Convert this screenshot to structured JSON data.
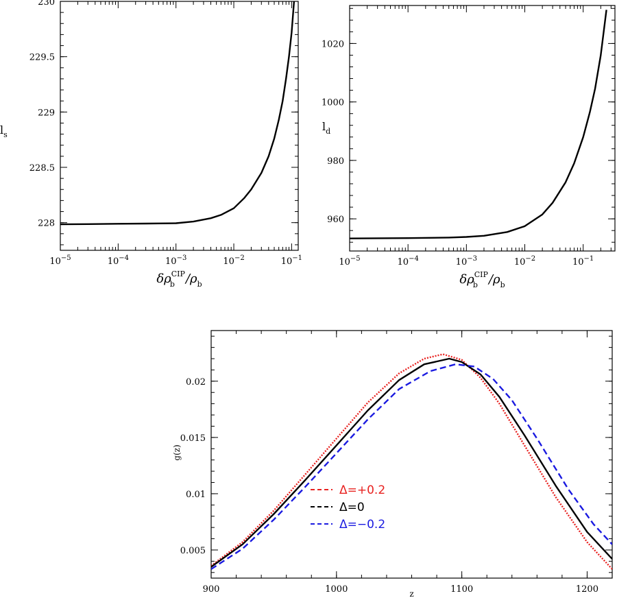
{
  "chart_data": [
    {
      "type": "line",
      "xscale": "log",
      "xlim": [
        1e-05,
        0.13
      ],
      "ylim": [
        227.75,
        230
      ],
      "xlabel": "δρ_b^CIP/ρ_b",
      "xlabel_main": "δρ",
      "xlabel_sup": "CIP",
      "xlabel_sub": "b",
      "xlabel_over": "/ρ",
      "xlabel_over_sub": "b",
      "ylabel": "l",
      "ylabel_sub": "s",
      "xticks": [
        {
          "value": 1e-05,
          "base": "10",
          "exp": "−5"
        },
        {
          "value": 0.0001,
          "base": "10",
          "exp": "−4"
        },
        {
          "value": 0.001,
          "base": "10",
          "exp": "−3"
        },
        {
          "value": 0.01,
          "base": "10",
          "exp": "−2"
        },
        {
          "value": 0.1,
          "base": "10",
          "exp": "−1"
        }
      ],
      "yticks": [
        {
          "value": 228,
          "label": "228"
        },
        {
          "value": 228.5,
          "label": "228.5"
        },
        {
          "value": 229,
          "label": "229"
        },
        {
          "value": 229.5,
          "label": "229.5"
        },
        {
          "value": 230,
          "label": "230"
        }
      ],
      "series": [
        {
          "color": "#000000",
          "dash": "solid",
          "x": [
            1e-05,
            3e-05,
            0.0001,
            0.0003,
            0.001,
            0.002,
            0.004,
            0.006,
            0.01,
            0.015,
            0.02,
            0.03,
            0.04,
            0.05,
            0.06,
            0.07,
            0.08,
            0.09,
            0.1,
            0.11
          ],
          "y": [
            227.985,
            227.987,
            227.99,
            227.992,
            227.995,
            228.01,
            228.04,
            228.07,
            228.13,
            228.22,
            228.3,
            228.45,
            228.6,
            228.76,
            228.93,
            229.1,
            229.3,
            229.5,
            229.72,
            230.0
          ]
        }
      ]
    },
    {
      "type": "line",
      "xscale": "log",
      "xlim": [
        1e-05,
        0.35
      ],
      "ylim": [
        949,
        1033
      ],
      "xlabel": "δρ_b^CIP/ρ_b",
      "xlabel_main": "δρ",
      "xlabel_sup": "CIP",
      "xlabel_sub": "b",
      "xlabel_over": "/ρ",
      "xlabel_over_sub": "b",
      "ylabel": "l",
      "ylabel_sub": "d",
      "xticks": [
        {
          "value": 1e-05,
          "base": "10",
          "exp": "−5"
        },
        {
          "value": 0.0001,
          "base": "10",
          "exp": "−4"
        },
        {
          "value": 0.001,
          "base": "10",
          "exp": "−3"
        },
        {
          "value": 0.01,
          "base": "10",
          "exp": "−2"
        },
        {
          "value": 0.1,
          "base": "10",
          "exp": "−1"
        }
      ],
      "yticks": [
        {
          "value": 960,
          "label": "960"
        },
        {
          "value": 980,
          "label": "980"
        },
        {
          "value": 1000,
          "label": "1000"
        },
        {
          "value": 1020,
          "label": "1020"
        }
      ],
      "series": [
        {
          "color": "#000000",
          "dash": "solid",
          "x": [
            1e-05,
            0.0001,
            0.0005,
            0.001,
            0.002,
            0.005,
            0.01,
            0.02,
            0.03,
            0.05,
            0.07,
            0.1,
            0.13,
            0.16,
            0.2,
            0.25
          ],
          "y": [
            953.3,
            953.4,
            953.6,
            953.8,
            954.2,
            955.5,
            957.5,
            961.5,
            965.5,
            972.5,
            979,
            988,
            996.5,
            1004.5,
            1016,
            1031.5
          ]
        }
      ]
    },
    {
      "type": "line",
      "xscale": "linear",
      "xlim": [
        900,
        1220
      ],
      "ylim": [
        0.0025,
        0.0245
      ],
      "xlabel": "z",
      "ylabel": "g(z)",
      "xticks": [
        {
          "value": 900,
          "label": "900"
        },
        {
          "value": 1000,
          "label": "1000"
        },
        {
          "value": 1100,
          "label": "1100"
        },
        {
          "value": 1200,
          "label": "1200"
        }
      ],
      "yticks": [
        {
          "value": 0.005,
          "label": "0.005"
        },
        {
          "value": 0.01,
          "label": "0.01"
        },
        {
          "value": 0.015,
          "label": "0.015"
        },
        {
          "value": 0.02,
          "label": "0.02"
        }
      ],
      "legend_position": "center-right",
      "series": [
        {
          "name": "Δ=+0.2",
          "color": "#e8211f",
          "dash": "dotted",
          "legend_dash": "dashed",
          "x": [
            900,
            925,
            950,
            975,
            1000,
            1025,
            1050,
            1070,
            1085,
            1100,
            1115,
            1130,
            1150,
            1175,
            1200,
            1220
          ],
          "y": [
            0.0036,
            0.0057,
            0.0085,
            0.0117,
            0.0149,
            0.0181,
            0.0207,
            0.022,
            0.0224,
            0.0219,
            0.0203,
            0.018,
            0.0143,
            0.0097,
            0.0057,
            0.0033
          ]
        },
        {
          "name": "Δ=0",
          "color": "#000000",
          "dash": "solid",
          "legend_dash": "dashed",
          "x": [
            900,
            925,
            950,
            975,
            1000,
            1025,
            1050,
            1070,
            1090,
            1100,
            1115,
            1130,
            1150,
            1175,
            1200,
            1220
          ],
          "y": [
            0.0035,
            0.0055,
            0.0082,
            0.0112,
            0.0143,
            0.0174,
            0.0201,
            0.0215,
            0.022,
            0.0217,
            0.0206,
            0.0186,
            0.0152,
            0.0107,
            0.0066,
            0.0042
          ]
        },
        {
          "name": "Δ=−0.2",
          "color": "#1a1ae0",
          "dash": "dashed",
          "legend_dash": "dashed",
          "x": [
            900,
            925,
            950,
            975,
            1000,
            1025,
            1050,
            1075,
            1095,
            1110,
            1125,
            1140,
            1160,
            1185,
            1205,
            1220
          ],
          "y": [
            0.0033,
            0.0051,
            0.0077,
            0.0106,
            0.0136,
            0.0166,
            0.0193,
            0.0209,
            0.0215,
            0.0213,
            0.0202,
            0.0183,
            0.0149,
            0.0104,
            0.0073,
            0.0055
          ]
        }
      ]
    }
  ]
}
